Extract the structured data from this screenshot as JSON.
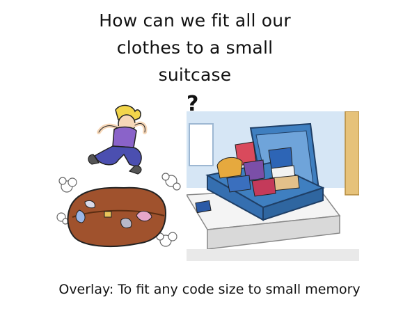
{
  "slide": {
    "title_lines": [
      "How can we fit all our",
      "clothes to a small",
      "suitcase"
    ],
    "question_mark": "?",
    "caption": "Overlay: To fit any code size to small memory"
  },
  "illustrations": {
    "left": "person-jumping-on-overstuffed-suitcase",
    "right": "open-packed-suitcase-on-bed"
  },
  "colors": {
    "text": "#111111",
    "background": "#ffffff",
    "suitcase_brown": "#a0522d",
    "suitcase_blue": "#3f7fc0",
    "shirt_purple": "#8a63c9",
    "pants_blue": "#4b4fb0"
  }
}
